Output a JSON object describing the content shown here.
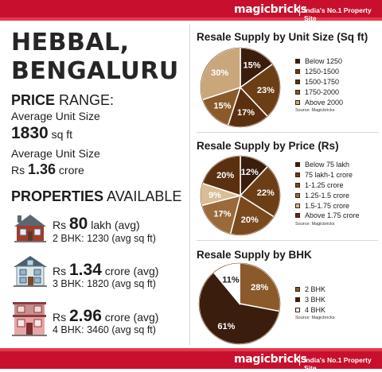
{
  "header": {
    "brand": "magicbricks",
    "tagline": "India's No.1 Property Site"
  },
  "footer": {
    "brand": "magicbricks",
    "tagline": "India's No.1 Property Site"
  },
  "location": {
    "line1": "HEBBAL,",
    "line2": "BENGALURU"
  },
  "price_range": {
    "heading_bold": "PRICE",
    "heading_rest": " RANGE:",
    "label1": "Average Unit Size",
    "unit_size_value": "1830",
    "unit_size_unit": " sq ft",
    "label2": "Average Unit Size",
    "price_prefix": "Rs ",
    "price_value": "1.36",
    "price_unit": " crore"
  },
  "properties": {
    "heading_bold": "PROPERTIES",
    "heading_rest": " AVAILABLE",
    "items": [
      {
        "prefix": "Rs ",
        "value": "80",
        "unit": " lakh (avg)",
        "detail": "2 BHK: 1230 (avg sq ft)",
        "icon": "small-house-icon"
      },
      {
        "prefix": "Rs ",
        "value": "1.34",
        "unit": " crore (avg)",
        "detail": "3 BHK: 1820 (avg sq ft)",
        "icon": "house-icon"
      },
      {
        "prefix": "Rs ",
        "value": "2.96",
        "unit": " crore (avg)",
        "detail": "4 BHK: 3460 (avg sq ft)",
        "icon": "villa-icon"
      }
    ]
  },
  "chart_data": [
    {
      "type": "pie",
      "title": "Resale Supply by Unit Size (Sq ft)",
      "categories": [
        "Below 1250",
        "1250-1500",
        "1500-1750",
        "1750-2000",
        "Above 2000"
      ],
      "values": [
        15,
        23,
        17,
        15,
        30
      ],
      "labels": [
        "15%",
        "23%",
        "17%",
        "15%",
        "30%"
      ],
      "colors": [
        "#3a1d0c",
        "#6b3e16",
        "#5a3010",
        "#8a5a2b",
        "#c9a77b"
      ],
      "label_colors": [
        "#ffffff",
        "#ffffff",
        "#ffffff",
        "#ffffff",
        "#ffffff"
      ],
      "source": "Source: Magicbricks",
      "legend": "right"
    },
    {
      "type": "pie",
      "title": "Resale Supply by Price (Rs)",
      "categories": [
        "Below 75 lakh",
        "75 lakh-1 crore",
        "1-1.25 crore",
        "1.25-1.5 crore",
        "1.5-1.75 crore",
        "Above 1.75 crore"
      ],
      "values": [
        12,
        22,
        20,
        17,
        9,
        20
      ],
      "labels": [
        "12%",
        "22%",
        "20%",
        "17%",
        "9%",
        "20%"
      ],
      "colors": [
        "#3a1d0c",
        "#6b3e16",
        "#7a4a1e",
        "#9a6a3a",
        "#d8bd95",
        "#5a3010"
      ],
      "label_colors": [
        "#ffffff",
        "#ffffff",
        "#ffffff",
        "#ffffff",
        "#ffffff",
        "#ffffff"
      ],
      "source": "Source: Magicbricks",
      "legend": "right"
    },
    {
      "type": "pie",
      "title": "Resale Supply by BHK",
      "categories": [
        "2 BHK",
        "3 BHK",
        "4 BHK"
      ],
      "values": [
        28,
        61,
        11
      ],
      "labels": [
        "28%",
        "61%",
        "11%"
      ],
      "colors": [
        "#8a5a2b",
        "#3a1d0c",
        "#ffffff"
      ],
      "label_colors": [
        "#ffffff",
        "#ffffff",
        "#1a1a1a"
      ],
      "source": "Source: Magicbricks",
      "legend": "right"
    }
  ]
}
